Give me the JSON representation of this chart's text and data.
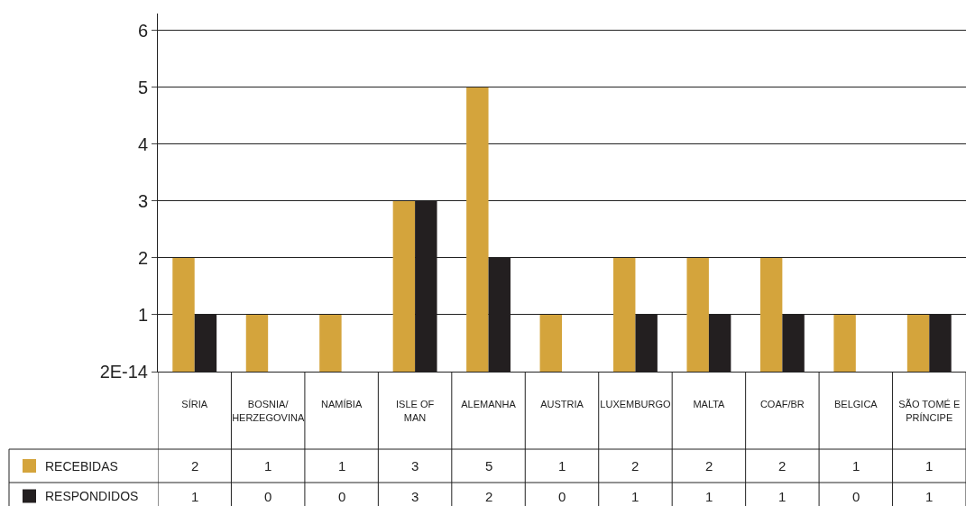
{
  "chart_data": {
    "type": "bar",
    "categories": [
      "SÍRIA",
      "BOSNIA/HERZEGOVINA",
      "NAMÍBIA",
      "ISLE OF MAN",
      "ALEMANHA",
      "AUSTRIA",
      "LUXEMBURGO",
      "MALTA",
      "COAF/BR",
      "BELGICA",
      "SÃO TOMÉ E PRÍNCIPE"
    ],
    "series": [
      {
        "name": "RECEBIDAS",
        "color": "#d4a43c",
        "values": [
          2,
          1,
          1,
          3,
          5,
          1,
          2,
          2,
          2,
          1,
          1
        ]
      },
      {
        "name": "RESPONDIDOS",
        "color": "#231f20",
        "values": [
          1,
          0,
          0,
          3,
          2,
          0,
          1,
          1,
          1,
          0,
          1
        ]
      }
    ],
    "ylim": [
      0,
      6.3
    ],
    "yticks": [
      {
        "value": 0,
        "label": "2E-14"
      },
      1,
      2,
      3,
      4,
      5,
      6
    ],
    "grid": "y",
    "legend": "bottom left",
    "data_labels": true
  }
}
